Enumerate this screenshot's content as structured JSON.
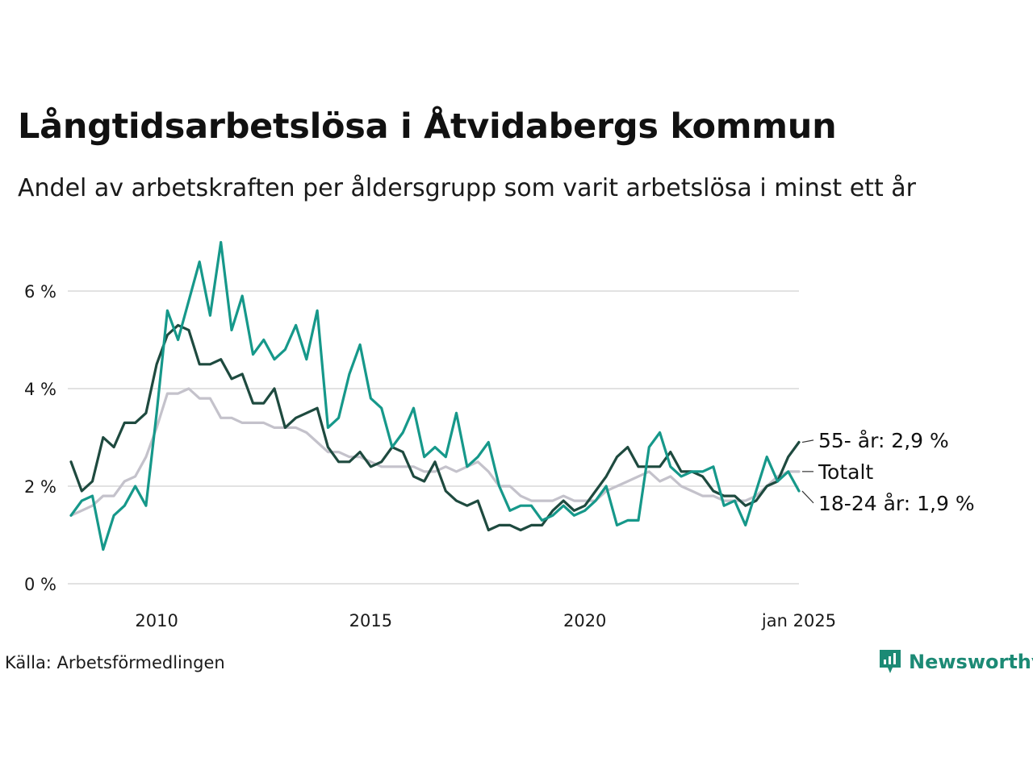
{
  "header": {
    "title": "Långtidsarbetslösa i Åtvidabergs kommun",
    "subtitle": "Andel av arbetskraften per åldersgrupp som varit arbetslösa i minst ett år"
  },
  "footer": {
    "source": "Källa: Arbetsförmedlingen",
    "brand": "Newsworthy"
  },
  "colors": {
    "total": "#c4c2cb",
    "age_55": "#1e4a3f",
    "age_18_24": "#16988a",
    "grid": "#e2e2e2",
    "brand": "#1c8a75"
  },
  "chart_data": {
    "type": "line",
    "title": "Långtidsarbetslösa i Åtvidabergs kommun",
    "subtitle": "Andel av arbetskraften per åldersgrupp som varit arbetslösa i minst ett år",
    "xlabel": "",
    "ylabel": "",
    "xlim": [
      2008.0,
      2025.0
    ],
    "ylim": [
      0,
      7
    ],
    "grid": true,
    "y_ticks": [
      0,
      2,
      4,
      6
    ],
    "y_tick_labels": [
      "0 %",
      "2 %",
      "4 %",
      "6 %"
    ],
    "x_ticks": [
      2010,
      2015,
      2020,
      2025
    ],
    "x_tick_labels": [
      "2010",
      "2015",
      "2020",
      "jan 2025"
    ],
    "series": [
      {
        "name": "Totalt",
        "label": "Totalt",
        "key": "total",
        "x": [
          2008.0,
          2008.25,
          2008.5,
          2008.75,
          2009.0,
          2009.25,
          2009.5,
          2009.75,
          2010.0,
          2010.25,
          2010.5,
          2010.75,
          2011.0,
          2011.25,
          2011.5,
          2011.75,
          2012.0,
          2012.25,
          2012.5,
          2012.75,
          2013.0,
          2013.25,
          2013.5,
          2013.75,
          2014.0,
          2014.25,
          2014.5,
          2014.75,
          2015.0,
          2015.25,
          2015.5,
          2015.75,
          2016.0,
          2016.25,
          2016.5,
          2016.75,
          2017.0,
          2017.25,
          2017.5,
          2017.75,
          2018.0,
          2018.25,
          2018.5,
          2018.75,
          2019.0,
          2019.25,
          2019.5,
          2019.75,
          2020.0,
          2020.25,
          2020.5,
          2020.75,
          2021.0,
          2021.25,
          2021.5,
          2021.75,
          2022.0,
          2022.25,
          2022.5,
          2022.75,
          2023.0,
          2023.25,
          2023.5,
          2023.75,
          2024.0,
          2024.25,
          2024.5,
          2024.75,
          2025.0
        ],
        "values": [
          1.4,
          1.5,
          1.6,
          1.8,
          1.8,
          2.1,
          2.2,
          2.6,
          3.2,
          3.9,
          3.9,
          4.0,
          3.8,
          3.8,
          3.4,
          3.4,
          3.3,
          3.3,
          3.3,
          3.2,
          3.2,
          3.2,
          3.1,
          2.9,
          2.7,
          2.7,
          2.6,
          2.6,
          2.5,
          2.4,
          2.4,
          2.4,
          2.4,
          2.3,
          2.3,
          2.4,
          2.3,
          2.4,
          2.5,
          2.3,
          2.0,
          2.0,
          1.8,
          1.7,
          1.7,
          1.7,
          1.8,
          1.7,
          1.7,
          1.7,
          1.9,
          2.0,
          2.1,
          2.2,
          2.3,
          2.1,
          2.2,
          2.0,
          1.9,
          1.8,
          1.8,
          1.7,
          1.7,
          1.7,
          1.8,
          2.0,
          2.2,
          2.3,
          2.3
        ],
        "end_label": "Totalt"
      },
      {
        "name": "55- år",
        "label": "55- år: 2,9 %",
        "key": "age_55",
        "x": [
          2008.0,
          2008.25,
          2008.5,
          2008.75,
          2009.0,
          2009.25,
          2009.5,
          2009.75,
          2010.0,
          2010.25,
          2010.5,
          2010.75,
          2011.0,
          2011.25,
          2011.5,
          2011.75,
          2012.0,
          2012.25,
          2012.5,
          2012.75,
          2013.0,
          2013.25,
          2013.5,
          2013.75,
          2014.0,
          2014.25,
          2014.5,
          2014.75,
          2015.0,
          2015.25,
          2015.5,
          2015.75,
          2016.0,
          2016.25,
          2016.5,
          2016.75,
          2017.0,
          2017.25,
          2017.5,
          2017.75,
          2018.0,
          2018.25,
          2018.5,
          2018.75,
          2019.0,
          2019.25,
          2019.5,
          2019.75,
          2020.0,
          2020.25,
          2020.5,
          2020.75,
          2021.0,
          2021.25,
          2021.5,
          2021.75,
          2022.0,
          2022.25,
          2022.5,
          2022.75,
          2023.0,
          2023.25,
          2023.5,
          2023.75,
          2024.0,
          2024.25,
          2024.5,
          2024.75,
          2025.0
        ],
        "values": [
          2.5,
          1.9,
          2.1,
          3.0,
          2.8,
          3.3,
          3.3,
          3.5,
          4.5,
          5.1,
          5.3,
          5.2,
          4.5,
          4.5,
          4.6,
          4.2,
          4.3,
          3.7,
          3.7,
          4.0,
          3.2,
          3.4,
          3.5,
          3.6,
          2.8,
          2.5,
          2.5,
          2.7,
          2.4,
          2.5,
          2.8,
          2.7,
          2.2,
          2.1,
          2.5,
          1.9,
          1.7,
          1.6,
          1.7,
          1.1,
          1.2,
          1.2,
          1.1,
          1.2,
          1.2,
          1.5,
          1.7,
          1.5,
          1.6,
          1.9,
          2.2,
          2.6,
          2.8,
          2.4,
          2.4,
          2.4,
          2.7,
          2.3,
          2.3,
          2.2,
          1.9,
          1.8,
          1.8,
          1.6,
          1.7,
          2.0,
          2.1,
          2.6,
          2.9
        ],
        "end_label": "55- år: 2,9 %"
      },
      {
        "name": "18-24 år",
        "label": "18-24 år: 1,9 %",
        "key": "age_18_24",
        "x": [
          2008.0,
          2008.25,
          2008.5,
          2008.75,
          2009.0,
          2009.25,
          2009.5,
          2009.75,
          2010.0,
          2010.25,
          2010.5,
          2010.75,
          2011.0,
          2011.25,
          2011.5,
          2011.75,
          2012.0,
          2012.25,
          2012.5,
          2012.75,
          2013.0,
          2013.25,
          2013.5,
          2013.75,
          2014.0,
          2014.25,
          2014.5,
          2014.75,
          2015.0,
          2015.25,
          2015.5,
          2015.75,
          2016.0,
          2016.25,
          2016.5,
          2016.75,
          2017.0,
          2017.25,
          2017.5,
          2017.75,
          2018.0,
          2018.25,
          2018.5,
          2018.75,
          2019.0,
          2019.25,
          2019.5,
          2019.75,
          2020.0,
          2020.25,
          2020.5,
          2020.75,
          2021.0,
          2021.25,
          2021.5,
          2021.75,
          2022.0,
          2022.25,
          2022.5,
          2022.75,
          2023.0,
          2023.25,
          2023.5,
          2023.75,
          2024.0,
          2024.25,
          2024.5,
          2024.75,
          2025.0
        ],
        "values": [
          1.4,
          1.7,
          1.8,
          0.7,
          1.4,
          1.6,
          2.0,
          1.6,
          3.5,
          5.6,
          5.0,
          5.8,
          6.6,
          5.5,
          7.0,
          5.2,
          5.9,
          4.7,
          5.0,
          4.6,
          4.8,
          5.3,
          4.6,
          5.6,
          3.2,
          3.4,
          4.3,
          4.9,
          3.8,
          3.6,
          2.8,
          3.1,
          3.6,
          2.6,
          2.8,
          2.6,
          3.5,
          2.4,
          2.6,
          2.9,
          2.0,
          1.5,
          1.6,
          1.6,
          1.3,
          1.4,
          1.6,
          1.4,
          1.5,
          1.7,
          2.0,
          1.2,
          1.3,
          1.3,
          2.8,
          3.1,
          2.4,
          2.2,
          2.3,
          2.3,
          2.4,
          1.6,
          1.7,
          1.2,
          1.9,
          2.6,
          2.1,
          2.3,
          1.9
        ],
        "end_label": "18-24 år: 1,9 %"
      }
    ]
  }
}
